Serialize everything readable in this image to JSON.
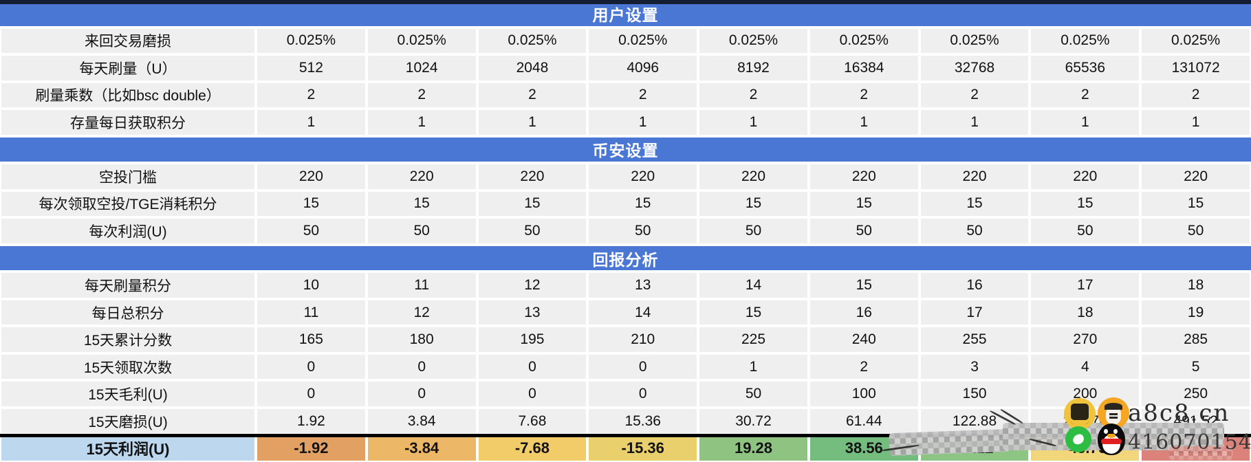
{
  "colors": {
    "section_header_bg": "#4a77d3",
    "section_header_text": "#ffffff",
    "cell_bg": "#efefef",
    "grid_gap": "#ffffff",
    "top_bar": "#141d33",
    "total_row_label_bg": "#bdd7ee",
    "total_row_topline": "#000000",
    "profit_cell_colors": [
      "#e2a163",
      "#ecb766",
      "#f2cc68",
      "#ead06c",
      "#8fc382",
      "#74bd7f",
      "#8cc584",
      "#f1d67b",
      "#db827a"
    ]
  },
  "table": {
    "columns": 9,
    "sections": [
      {
        "name": "section-header-user-settings",
        "header": "用户设置",
        "rows": [
          {
            "label": "来回交易磨损",
            "values": [
              "0.025%",
              "0.025%",
              "0.025%",
              "0.025%",
              "0.025%",
              "0.025%",
              "0.025%",
              "0.025%",
              "0.025%"
            ]
          },
          {
            "label": "每天刷量（U）",
            "values": [
              "512",
              "1024",
              "2048",
              "4096",
              "8192",
              "16384",
              "32768",
              "65536",
              "131072"
            ]
          },
          {
            "label": "刷量乘数（比如bsc double）",
            "values": [
              "2",
              "2",
              "2",
              "2",
              "2",
              "2",
              "2",
              "2",
              "2"
            ]
          },
          {
            "label": "存量每日获取积分",
            "values": [
              "1",
              "1",
              "1",
              "1",
              "1",
              "1",
              "1",
              "1",
              "1"
            ]
          }
        ]
      },
      {
        "name": "section-header-binance-settings",
        "header": "币安设置",
        "rows": [
          {
            "label": "空投门槛",
            "values": [
              "220",
              "220",
              "220",
              "220",
              "220",
              "220",
              "220",
              "220",
              "220"
            ]
          },
          {
            "label": "每次领取空投/TGE消耗积分",
            "values": [
              "15",
              "15",
              "15",
              "15",
              "15",
              "15",
              "15",
              "15",
              "15"
            ]
          },
          {
            "label": "每次利润(U)",
            "values": [
              "50",
              "50",
              "50",
              "50",
              "50",
              "50",
              "50",
              "50",
              "50"
            ]
          }
        ]
      },
      {
        "name": "section-header-return-analysis",
        "header": "回报分析",
        "rows": [
          {
            "label": "每天刷量积分",
            "values": [
              "10",
              "11",
              "12",
              "13",
              "14",
              "15",
              "16",
              "17",
              "18"
            ]
          },
          {
            "label": "每日总积分",
            "values": [
              "11",
              "12",
              "13",
              "14",
              "15",
              "16",
              "17",
              "18",
              "19"
            ]
          },
          {
            "label": "15天累计分数",
            "values": [
              "165",
              "180",
              "195",
              "210",
              "225",
              "240",
              "255",
              "270",
              "285"
            ]
          },
          {
            "label": "15天领取次数",
            "values": [
              "0",
              "0",
              "0",
              "0",
              "1",
              "2",
              "3",
              "4",
              "5"
            ]
          },
          {
            "label": "15天毛利(U)",
            "values": [
              "0",
              "0",
              "0",
              "0",
              "50",
              "100",
              "150",
              "200",
              "250"
            ]
          },
          {
            "label": "15天磨损(U)",
            "values": [
              "1.92",
              "3.84",
              "7.68",
              "15.36",
              "30.72",
              "61.44",
              "122.88",
              "245.76",
              "491.52"
            ]
          },
          {
            "label": "15天利润(U)",
            "total": true,
            "values": [
              "-1.92",
              "-3.84",
              "-7.68",
              "-15.36",
              "19.28",
              "38.56",
              "27.12",
              "-45.76",
              "-241.52"
            ]
          }
        ]
      }
    ]
  },
  "watermark": {
    "site_text": "a8c8.cn",
    "qq_number": "416070154",
    "icons": [
      "seal-avatar-icon",
      "masked-person-avatar-icon",
      "green-circle-icon",
      "qq-penguin-icon"
    ]
  }
}
